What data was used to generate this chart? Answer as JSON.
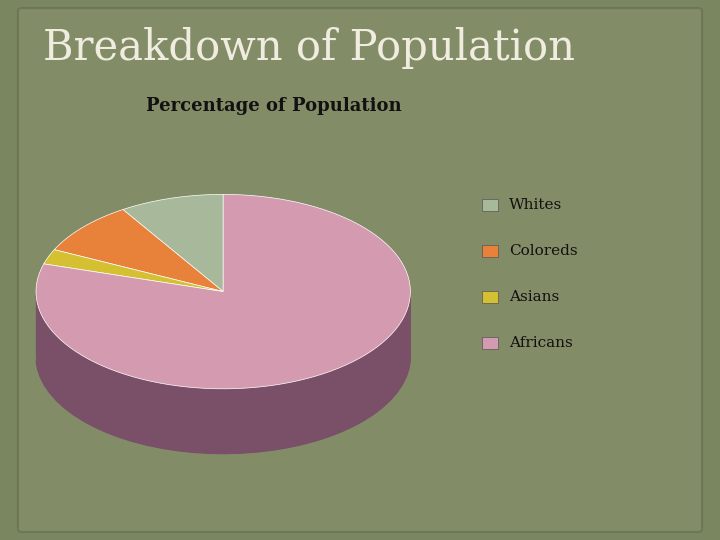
{
  "title": "Breakdown of Population",
  "subtitle": "Percentage of Population",
  "labels": [
    "Whites",
    "Coloreds",
    "Asians",
    "Africans"
  ],
  "values": [
    9.0,
    8.9,
    2.5,
    79.6
  ],
  "colors": [
    "#a8b89a",
    "#e8813a",
    "#d4c030",
    "#d49ab0"
  ],
  "shadow_colors": [
    "#7a8a72",
    "#a85c20",
    "#9a8a10",
    "#7a5068"
  ],
  "background_color": "#7a8660",
  "title_color": "#f0ede0",
  "subtitle_color": "#111111",
  "legend_text_color": "#111111",
  "title_fontsize": 30,
  "subtitle_fontsize": 13,
  "startangle": 90
}
